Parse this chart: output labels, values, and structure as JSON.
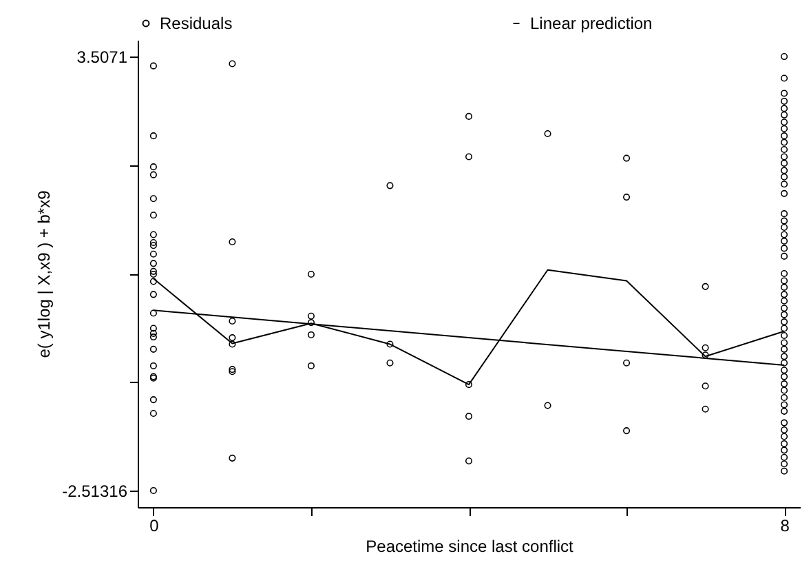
{
  "chart_data": {
    "type": "scatter",
    "xlabel": "Peacetime since last conflict",
    "ylabel": "e( y1log | X,x9 ) + b*x9",
    "xlim": [
      -0.2,
      8.2
    ],
    "xticks": [
      0,
      {
        "value": 2,
        "label": null
      },
      {
        "value": 4,
        "label": null
      },
      {
        "value": 6,
        "label": null
      },
      8
    ],
    "ylim": [
      -2.74,
      3.74
    ],
    "yticks": [
      -2.51316,
      {
        "value": -1.00809,
        "label": null
      },
      {
        "value": 0.49697,
        "label": null
      },
      {
        "value": 2.00204,
        "label": null
      },
      3.5071
    ],
    "grid": false,
    "legend": "top",
    "series": [
      {
        "name": "Residuals",
        "marker": "circle",
        "color": "#000000",
        "x": [
          0,
          0,
          0,
          0,
          0,
          0,
          0,
          0,
          0,
          0,
          0,
          0,
          0,
          0,
          0,
          0,
          0,
          0,
          0,
          0,
          0,
          0,
          0,
          0,
          0,
          0,
          1,
          1,
          1,
          1,
          1,
          1,
          1,
          1,
          2,
          2,
          2,
          2,
          2,
          3,
          3,
          3,
          4,
          4,
          4,
          4,
          4,
          5,
          5,
          6,
          6,
          6,
          6,
          7,
          7,
          7,
          7,
          7,
          8,
          8,
          8,
          8,
          8,
          8,
          8,
          8,
          8,
          8,
          8,
          8,
          8,
          8,
          8,
          8,
          8,
          8,
          8,
          8,
          8,
          8,
          8,
          8,
          8,
          8,
          8,
          8,
          8,
          8,
          8,
          8,
          8,
          8,
          8,
          8,
          8,
          8,
          8,
          8,
          8,
          8,
          8,
          8,
          8,
          8,
          8,
          8,
          8,
          8,
          8,
          8,
          8
        ],
        "values": [
          3.38,
          2.41,
          1.98,
          1.87,
          1.54,
          1.31,
          1.04,
          0.93,
          0.89,
          0.77,
          0.64,
          0.53,
          0.49,
          0.39,
          0.21,
          -0.05,
          -0.26,
          -0.33,
          -0.38,
          -0.55,
          -0.78,
          -0.93,
          -0.95,
          -1.25,
          -1.44,
          -2.51,
          3.41,
          0.94,
          -0.16,
          -0.39,
          -0.48,
          -0.83,
          -0.86,
          -2.06,
          0.49,
          -0.09,
          -0.18,
          -0.35,
          -0.78,
          1.72,
          -0.48,
          -0.74,
          2.68,
          2.12,
          -1.04,
          -1.48,
          -2.1,
          2.44,
          -1.33,
          2.1,
          1.56,
          -0.74,
          -1.68,
          0.32,
          -0.53,
          -0.63,
          -1.06,
          -1.38,
          3.51,
          3.21,
          3.0,
          2.89,
          2.79,
          2.7,
          2.6,
          2.51,
          2.41,
          2.32,
          2.22,
          2.12,
          2.03,
          1.93,
          1.84,
          1.74,
          1.61,
          1.33,
          1.23,
          1.14,
          1.04,
          0.95,
          0.85,
          0.74,
          0.5,
          0.4,
          0.31,
          0.21,
          0.12,
          0.02,
          -0.07,
          -0.17,
          -0.26,
          -0.36,
          -0.46,
          -0.55,
          -0.65,
          -0.74,
          -0.84,
          -0.93,
          -1.03,
          -1.12,
          -1.22,
          -1.32,
          -1.41,
          -1.57,
          -1.67,
          -1.76,
          -1.86,
          -1.95,
          -2.05,
          -2.14,
          -2.24
        ]
      },
      {
        "type": "line",
        "color": "#000000",
        "x": [
          0,
          1,
          2,
          3,
          4,
          5,
          6,
          7,
          8
        ],
        "values": [
          0.43,
          -0.47,
          -0.19,
          -0.48,
          -1.04,
          0.55,
          0.4,
          -0.65,
          -0.3
        ]
      },
      {
        "name": "Linear prediction",
        "type": "line",
        "color": "#000000",
        "x": [
          0,
          8
        ],
        "values": [
          -0.01,
          -0.77
        ]
      }
    ]
  }
}
